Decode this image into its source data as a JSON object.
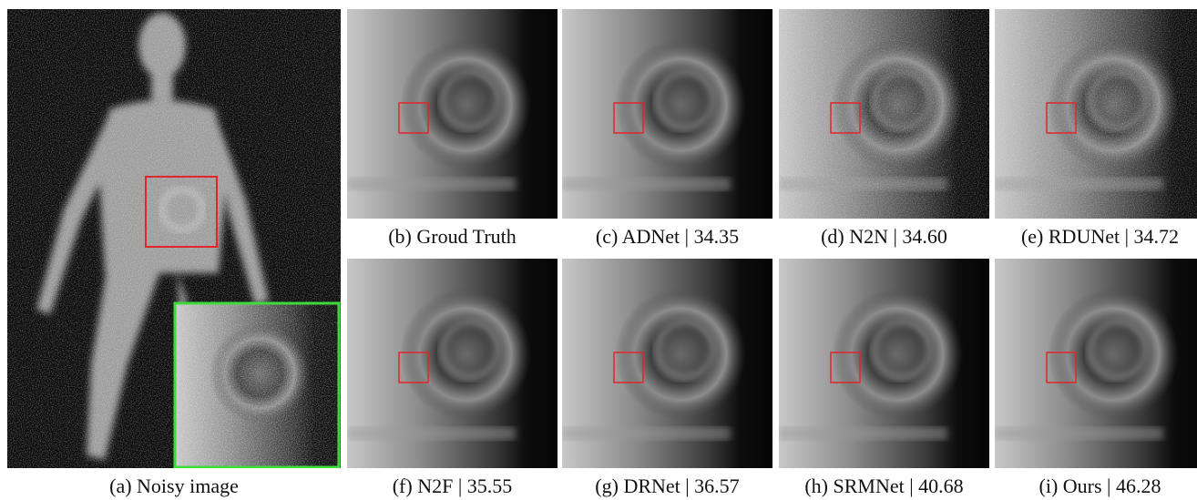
{
  "figure": {
    "main_caption": "(a) Noisy image",
    "panels": [
      {
        "caption": "(b) Groud Truth"
      },
      {
        "caption": "(c) ADNet | 34.35"
      },
      {
        "caption": "(d) N2N | 34.60"
      },
      {
        "caption": "(e) RDUNet | 34.72"
      },
      {
        "caption": "(f) N2F | 35.55"
      },
      {
        "caption": "(g) DRNet | 36.57"
      },
      {
        "caption": "(h) SRMNet | 40.68"
      },
      {
        "caption": "(i) Ours | 46.28"
      }
    ]
  }
}
